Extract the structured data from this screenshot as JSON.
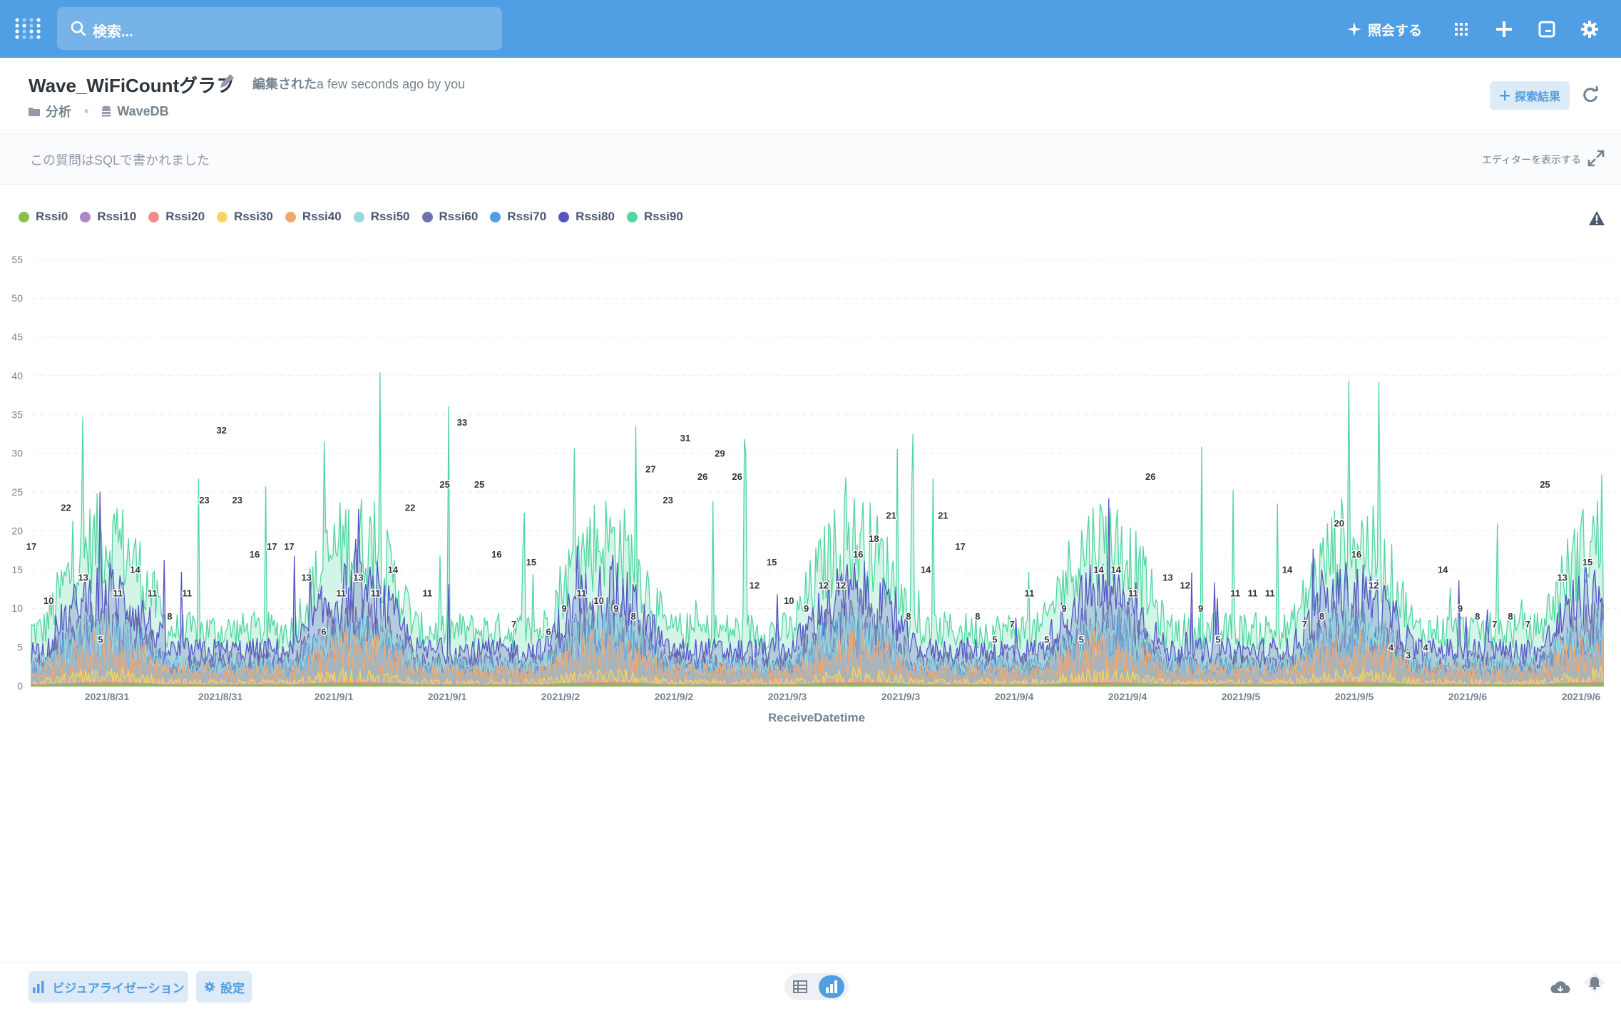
{
  "nav": {
    "search_placeholder": "検索...",
    "ask_label": "照会する"
  },
  "question": {
    "title": "Wave_WiFiCountグラフ",
    "edited_prefix": "編集された",
    "edited_suffix": "a few seconds ago by you",
    "collection": "分析",
    "database": "WaveDB",
    "explore_label": "探索結果"
  },
  "sql_bar": {
    "note": "この質問はSQLで書かれました",
    "show_editor": "エディターを表示する"
  },
  "footer": {
    "visualization_label": "ビジュアライゼーション",
    "settings_label": "設定"
  },
  "chart_data": {
    "type": "area",
    "stacked": false,
    "xlabel": "ReceiveDatetime",
    "ylabel": "",
    "ylim": [
      0,
      57
    ],
    "yticks": [
      0,
      5,
      10,
      15,
      20,
      25,
      30,
      35,
      40,
      45,
      50,
      55
    ],
    "x_tick_labels": [
      "2021/8/31",
      "2021/8/31",
      "2021/9/1",
      "2021/9/1",
      "2021/9/2",
      "2021/9/2",
      "2021/9/3",
      "2021/9/3",
      "2021/9/4",
      "2021/9/4",
      "2021/9/5",
      "2021/9/5",
      "2021/9/6",
      "2021/9/6"
    ],
    "legend_position": "top-left",
    "grid": "horizontal",
    "series": [
      {
        "name": "Rssi0",
        "color": "#88bf4d",
        "level": 0.1,
        "vary": 0
      },
      {
        "name": "Rssi10",
        "color": "#a989c5",
        "level": 0.2,
        "vary": 0
      },
      {
        "name": "Rssi20",
        "color": "#ef8c8c",
        "level": 0.3,
        "vary": 0
      },
      {
        "name": "Rssi30",
        "color": "#f9d45c",
        "level": 0.6,
        "vary": 0.9
      },
      {
        "name": "Rssi40",
        "color": "#f2a86f",
        "level": 2.5,
        "vary": 2.2
      },
      {
        "name": "Rssi50",
        "color": "#98d9d9",
        "level": 4.5,
        "vary": 2.5
      },
      {
        "name": "Rssi60",
        "color": "#7172ad",
        "level": 5.0,
        "vary": 2.6
      },
      {
        "name": "Rssi70",
        "color": "#509ee3",
        "level": 4.2,
        "vary": 2.2
      },
      {
        "name": "Rssi80",
        "color": "#5454c5",
        "level": 7.5,
        "vary": 3.2
      },
      {
        "name": "Rssi90",
        "color": "#51d6a0",
        "level": 12.0,
        "vary": 4.5
      }
    ],
    "data_labels": [
      {
        "x": 0.0,
        "value": 17
      },
      {
        "x": 0.011,
        "value": 10
      },
      {
        "x": 0.022,
        "value": 22
      },
      {
        "x": 0.033,
        "value": 13
      },
      {
        "x": 0.044,
        "value": 5
      },
      {
        "x": 0.055,
        "value": 11
      },
      {
        "x": 0.066,
        "value": 14
      },
      {
        "x": 0.077,
        "value": 11
      },
      {
        "x": 0.088,
        "value": 8
      },
      {
        "x": 0.099,
        "value": 11
      },
      {
        "x": 0.11,
        "value": 23
      },
      {
        "x": 0.121,
        "value": 32
      },
      {
        "x": 0.131,
        "value": 23
      },
      {
        "x": 0.142,
        "value": 16
      },
      {
        "x": 0.153,
        "value": 17
      },
      {
        "x": 0.164,
        "value": 17
      },
      {
        "x": 0.175,
        "value": 13
      },
      {
        "x": 0.186,
        "value": 6
      },
      {
        "x": 0.197,
        "value": 11
      },
      {
        "x": 0.208,
        "value": 13
      },
      {
        "x": 0.219,
        "value": 11
      },
      {
        "x": 0.23,
        "value": 14
      },
      {
        "x": 0.241,
        "value": 22
      },
      {
        "x": 0.252,
        "value": 11
      },
      {
        "x": 0.263,
        "value": 25
      },
      {
        "x": 0.274,
        "value": 33
      },
      {
        "x": 0.285,
        "value": 25
      },
      {
        "x": 0.296,
        "value": 16
      },
      {
        "x": 0.307,
        "value": 7
      },
      {
        "x": 0.318,
        "value": 15
      },
      {
        "x": 0.329,
        "value": 6
      },
      {
        "x": 0.339,
        "value": 9
      },
      {
        "x": 0.35,
        "value": 11
      },
      {
        "x": 0.361,
        "value": 10
      },
      {
        "x": 0.372,
        "value": 9
      },
      {
        "x": 0.383,
        "value": 8
      },
      {
        "x": 0.394,
        "value": 27
      },
      {
        "x": 0.405,
        "value": 23
      },
      {
        "x": 0.416,
        "value": 31
      },
      {
        "x": 0.427,
        "value": 26
      },
      {
        "x": 0.438,
        "value": 29
      },
      {
        "x": 0.449,
        "value": 26
      },
      {
        "x": 0.46,
        "value": 12
      },
      {
        "x": 0.471,
        "value": 15
      },
      {
        "x": 0.482,
        "value": 10
      },
      {
        "x": 0.493,
        "value": 9
      },
      {
        "x": 0.504,
        "value": 12
      },
      {
        "x": 0.515,
        "value": 12
      },
      {
        "x": 0.526,
        "value": 16
      },
      {
        "x": 0.536,
        "value": 18
      },
      {
        "x": 0.547,
        "value": 21
      },
      {
        "x": 0.558,
        "value": 8
      },
      {
        "x": 0.569,
        "value": 14
      },
      {
        "x": 0.58,
        "value": 21
      },
      {
        "x": 0.591,
        "value": 17
      },
      {
        "x": 0.602,
        "value": 8
      },
      {
        "x": 0.613,
        "value": 5
      },
      {
        "x": 0.624,
        "value": 7
      },
      {
        "x": 0.635,
        "value": 11
      },
      {
        "x": 0.646,
        "value": 5
      },
      {
        "x": 0.657,
        "value": 9
      },
      {
        "x": 0.668,
        "value": 5
      },
      {
        "x": 0.679,
        "value": 14
      },
      {
        "x": 0.69,
        "value": 14
      },
      {
        "x": 0.701,
        "value": 11
      },
      {
        "x": 0.712,
        "value": 26
      },
      {
        "x": 0.723,
        "value": 13
      },
      {
        "x": 0.734,
        "value": 12
      },
      {
        "x": 0.744,
        "value": 9
      },
      {
        "x": 0.755,
        "value": 5
      },
      {
        "x": 0.766,
        "value": 11
      },
      {
        "x": 0.777,
        "value": 11
      },
      {
        "x": 0.788,
        "value": 11
      },
      {
        "x": 0.799,
        "value": 14
      },
      {
        "x": 0.81,
        "value": 7
      },
      {
        "x": 0.821,
        "value": 8
      },
      {
        "x": 0.832,
        "value": 20
      },
      {
        "x": 0.843,
        "value": 16
      },
      {
        "x": 0.854,
        "value": 12
      },
      {
        "x": 0.865,
        "value": 4
      },
      {
        "x": 0.876,
        "value": 3
      },
      {
        "x": 0.887,
        "value": 4
      },
      {
        "x": 0.898,
        "value": 14
      },
      {
        "x": 0.909,
        "value": 9
      },
      {
        "x": 0.92,
        "value": 8
      },
      {
        "x": 0.931,
        "value": 7
      },
      {
        "x": 0.941,
        "value": 8
      },
      {
        "x": 0.952,
        "value": 7
      },
      {
        "x": 0.963,
        "value": 25
      },
      {
        "x": 0.974,
        "value": 13
      },
      {
        "x": 0.99,
        "value": 15
      }
    ]
  }
}
